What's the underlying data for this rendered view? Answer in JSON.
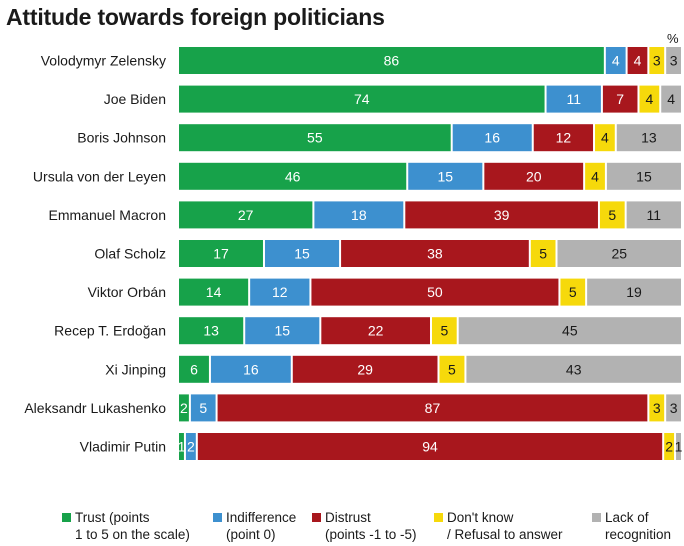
{
  "header": {
    "title": "Attitude towards foreign politicians",
    "unit": "%"
  },
  "colors": {
    "trust": "#17a24a",
    "indifference": "#3d90cf",
    "distrust": "#a8171d",
    "dontknow": "#f6d90b",
    "lack": "#b2b2b2"
  },
  "legend": [
    {
      "key": "trust",
      "line1": "Trust (points",
      "line2": "1 to 5 on the scale)"
    },
    {
      "key": "indifference",
      "line1": "Indifference",
      "line2": "(point 0)"
    },
    {
      "key": "distrust",
      "line1": "Distrust",
      "line2": "(points -1 to -5)"
    },
    {
      "key": "dontknow",
      "line1": "Don't know",
      "line2": "/ Refusal to answer"
    },
    {
      "key": "lack",
      "line1": "Lack of",
      "line2": "recognition"
    }
  ],
  "chart_data": {
    "type": "bar",
    "stacked": true,
    "orientation": "horizontal",
    "title": "Attitude towards foreign politicians",
    "unit": "%",
    "categories": [
      "Volodymyr Zelensky",
      "Joe Biden",
      "Boris Johnson",
      "Ursula von der Leyen",
      "Emmanuel Macron",
      "Olaf Scholz",
      "Viktor Orbán",
      "Recep T. Erdoğan",
      "Xi Jinping",
      "Aleksandr Lukashenko",
      "Vladimir Putin"
    ],
    "series": [
      {
        "name": "Trust (points 1 to 5 on the scale)",
        "key": "trust",
        "values": [
          86,
          74,
          55,
          46,
          27,
          17,
          14,
          13,
          6,
          2,
          1
        ]
      },
      {
        "name": "Indifference (point 0)",
        "key": "indifference",
        "values": [
          4,
          11,
          16,
          15,
          18,
          15,
          12,
          15,
          16,
          5,
          2
        ]
      },
      {
        "name": "Distrust (points -1 to -5)",
        "key": "distrust",
        "values": [
          4,
          7,
          12,
          20,
          39,
          38,
          50,
          22,
          29,
          87,
          94
        ]
      },
      {
        "name": "Don't know / Refusal to answer",
        "key": "dontknow",
        "values": [
          3,
          4,
          4,
          4,
          5,
          5,
          5,
          5,
          5,
          3,
          2
        ]
      },
      {
        "name": "Lack of recognition",
        "key": "lack",
        "values": [
          3,
          4,
          13,
          15,
          11,
          25,
          19,
          45,
          43,
          3,
          1
        ]
      }
    ],
    "xlim": [
      0,
      100
    ],
    "legend_position": "bottom"
  }
}
